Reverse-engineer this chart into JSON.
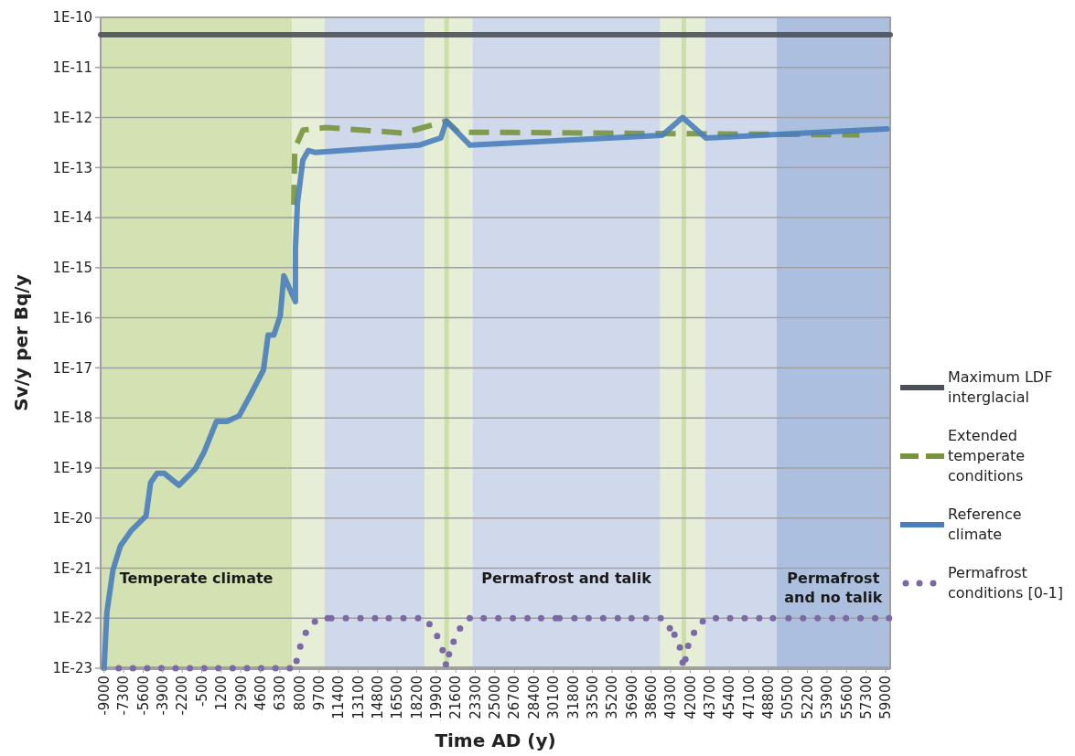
{
  "chart_data": {
    "type": "line",
    "xlabel": "Time AD (y)",
    "ylabel": "Sv/y per Bq/y",
    "xlim": [
      -9300,
      59400
    ],
    "ylim": [
      1e-23,
      1e-10
    ],
    "log": "y",
    "grid": "y",
    "legend": "right",
    "xticks": [
      -9000,
      -7300,
      -5600,
      -3900,
      -2200,
      -500,
      1200,
      2900,
      4600,
      6300,
      8000,
      9700,
      11400,
      13100,
      14800,
      16500,
      18200,
      19900,
      21600,
      23300,
      25000,
      26700,
      28400,
      30100,
      31800,
      33500,
      35200,
      36900,
      38600,
      40300,
      42000,
      43700,
      45400,
      47100,
      48800,
      50500,
      52200,
      53900,
      55600,
      57300,
      59000
    ],
    "yticks": [
      {
        "value": 1e-10,
        "label": "1E-10"
      },
      {
        "value": 1e-11,
        "label": "1E-11"
      },
      {
        "value": 1e-12,
        "label": "1E-12"
      },
      {
        "value": 1e-13,
        "label": "1E-13"
      },
      {
        "value": 1e-14,
        "label": "1E-14"
      },
      {
        "value": 1e-15,
        "label": "1E-15"
      },
      {
        "value": 1e-16,
        "label": "1E-16"
      },
      {
        "value": 1e-17,
        "label": "1E-17"
      },
      {
        "value": 1e-18,
        "label": "1E-18"
      },
      {
        "value": 1e-19,
        "label": "1E-19"
      },
      {
        "value": 1e-20,
        "label": "1E-20"
      },
      {
        "value": 1e-21,
        "label": "1E-21"
      },
      {
        "value": 1e-22,
        "label": "1E-22"
      },
      {
        "value": 1e-23,
        "label": "1E-23"
      }
    ],
    "bands": [
      {
        "axis": "x",
        "from": -9300,
        "to": 7350,
        "color": "#d4e2b3",
        "label": "Temperate climate"
      },
      {
        "axis": "x",
        "from": 7350,
        "to": 10200,
        "color": "#e6eed7"
      },
      {
        "axis": "x",
        "from": 10200,
        "to": 18900,
        "color": "#d0d9ec"
      },
      {
        "axis": "x",
        "from": 18900,
        "to": 23050,
        "color": "#e6eed7"
      },
      {
        "axis": "x",
        "from": 23050,
        "to": 39400,
        "color": "#d0d9ec",
        "label": "Permafrost and talik"
      },
      {
        "axis": "x",
        "from": 39400,
        "to": 43300,
        "color": "#e6eed7"
      },
      {
        "axis": "x",
        "from": 43300,
        "to": 49500,
        "color": "#d0d9ec"
      },
      {
        "axis": "x",
        "from": 49500,
        "to": 59400,
        "color": "#adbfdf",
        "label": "Permafrost and no talik"
      }
    ],
    "ref_lines": [
      {
        "axis": "x",
        "value": 20800,
        "color": "#cddfa8"
      },
      {
        "axis": "x",
        "value": 41450,
        "color": "#cddfa8"
      }
    ],
    "series": [
      {
        "name": "Maximum LDF interglacial",
        "color": "#4b5059",
        "line_style": "solid",
        "x": [
          -9300,
          59400
        ],
        "values": [
          4.5e-11,
          4.5e-11
        ]
      },
      {
        "name": "Extended temperate conditions",
        "color": "#77933c",
        "line_style": "dashed",
        "x": [
          7510,
          7590,
          8310,
          10290,
          17040,
          20780,
          21810,
          56730
        ],
        "values": [
          1.8e-14,
          2.4e-13,
          5.6e-13,
          6.3e-13,
          4.9e-13,
          8.5e-13,
          5.1e-13,
          4.5e-13
        ]
      },
      {
        "name": "Reference climate",
        "color": "#4a7ebb",
        "line_style": "solid",
        "x": [
          -9000,
          -8760,
          -8230,
          -7570,
          -6640,
          -5350,
          -4950,
          -4390,
          -3760,
          -2490,
          -1080,
          -290,
          770,
          1700,
          2750,
          3780,
          4870,
          5270,
          5770,
          6330,
          6640,
          7650,
          7650,
          7830,
          8290,
          8770,
          9400,
          18390,
          20300,
          20780,
          22840,
          39560,
          41340,
          43370,
          59130
        ],
        "values": [
          1e-23,
          1.3e-22,
          9.1e-22,
          2.8e-21,
          5.6e-21,
          1.1e-20,
          5.1e-20,
          7.8e-20,
          7.8e-20,
          4.5e-20,
          9.5e-20,
          2.1e-19,
          8.5e-19,
          8.5e-19,
          1.1e-18,
          3e-18,
          9.1e-18,
          4.5e-17,
          4.5e-17,
          1.1e-16,
          6.9e-16,
          2.1e-16,
          2.4e-15,
          2e-14,
          1.4e-13,
          2.2e-13,
          2e-13,
          2.8e-13,
          3.9e-13,
          8.5e-13,
          2.8e-13,
          4.4e-13,
          1e-12,
          3.9e-13,
          5.9e-13
        ]
      },
      {
        "name": "Permafrost conditions [0-1]",
        "type": "scatter",
        "marker": "circle",
        "color": "#7b68a6",
        "x": [
          -7730,
          -6490,
          -5250,
          -4010,
          -2770,
          -1530,
          -290,
          950,
          2190,
          3430,
          4670,
          5920,
          7160,
          7750,
          8070,
          8550,
          9340,
          10450,
          10770,
          12040,
          13310,
          14580,
          15780,
          17050,
          18320,
          19310,
          19980,
          20460,
          20740,
          21010,
          21410,
          21970,
          22820,
          24030,
          25300,
          26570,
          27840,
          29030,
          30300,
          30620,
          31930,
          33160,
          34430,
          35700,
          36890,
          38160,
          39430,
          40230,
          40630,
          41100,
          41340,
          41580,
          41820,
          42330,
          43090,
          44240,
          45470,
          46740,
          48010,
          49200,
          50550,
          51820,
          53090,
          54360,
          55550,
          56820,
          58090,
          59300
        ],
        "values": [
          1e-23,
          1e-23,
          1e-23,
          1e-23,
          1e-23,
          1e-23,
          1e-23,
          1e-23,
          1e-23,
          1e-23,
          1e-23,
          1e-23,
          1e-23,
          1.4e-23,
          2.7e-23,
          5.1e-23,
          8.5e-23,
          1e-22,
          1e-22,
          1e-22,
          1e-22,
          1e-22,
          1e-22,
          1e-22,
          1e-22,
          7.6e-23,
          4.4e-23,
          2.3e-23,
          1.2e-23,
          1.9e-23,
          3.4e-23,
          6.2e-23,
          1e-22,
          1e-22,
          1e-22,
          1e-22,
          1e-22,
          1e-22,
          1e-22,
          1e-22,
          1e-22,
          1e-22,
          1e-22,
          1e-22,
          1e-22,
          1e-22,
          1e-22,
          6.3e-23,
          4.7e-23,
          2.6e-23,
          1.3e-23,
          1.5e-23,
          2.8e-23,
          5.1e-23,
          8.6e-23,
          1e-22,
          1e-22,
          1e-22,
          1e-22,
          1e-22,
          1e-22,
          1e-22,
          1e-22,
          1e-22,
          1e-22,
          1e-22,
          1e-22,
          1e-22
        ]
      }
    ]
  }
}
